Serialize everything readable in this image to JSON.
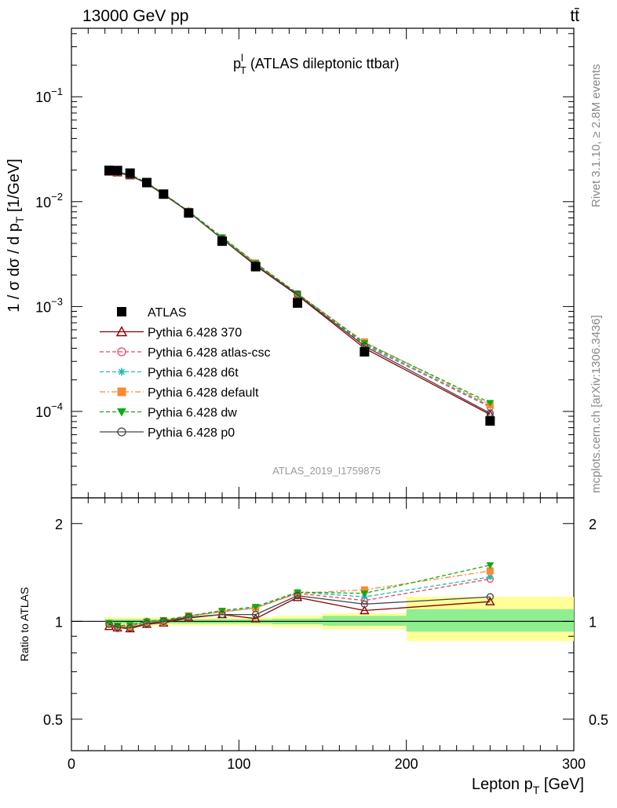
{
  "header": {
    "energy_label": "13000 GeV pp",
    "process_label": "tt̄"
  },
  "side_labels": {
    "rivet": "Rivet 3.1.10, ≥ 2.8M events",
    "mcplots": "mcplots.cern.ch [arXiv:1306.3436]"
  },
  "chart_data": [
    {
      "type": "scatter",
      "title": "p_T^l (ATLAS dileptonic ttbar)",
      "title_main": "p",
      "title_sup": "l",
      "title_sub": "T",
      "title_rest": " (ATLAS dileptonic ttbar)",
      "watermark": "ATLAS_2019_I1759875",
      "ylabel": "1 / σ  dσ / d p_T [1/GeV]",
      "ylabel_main": "1 / σ  dσ / d p",
      "ylabel_sub": "T",
      "ylabel_rest": " [1/GeV]",
      "yscale": "log",
      "ylim": [
        1.5e-05,
        0.45
      ],
      "xlim": [
        0,
        300
      ],
      "ytick_labels": [
        "10⁻⁴",
        "10⁻³",
        "10⁻²",
        "10⁻¹"
      ],
      "ytick_values": [
        0.0001,
        0.001,
        0.01,
        0.1
      ],
      "legend_position": "bottom-left",
      "x": [
        22.5,
        27.5,
        35,
        45,
        55,
        70,
        90,
        110,
        135,
        175,
        250
      ],
      "series": [
        {
          "name": "ATLAS",
          "marker": "square",
          "color": "#000000",
          "values": [
            0.0199,
            0.0198,
            0.0187,
            0.0152,
            0.0118,
            0.0078,
            0.0042,
            0.0024,
            0.00108,
            0.00037,
            8.1e-05
          ]
        },
        {
          "name": "Pythia 6.428 370",
          "marker": "triangle-open",
          "color": "#8b0000",
          "line": "solid",
          "values": [
            0.0192,
            0.0189,
            0.0177,
            0.0149,
            0.0117,
            0.008,
            0.0044,
            0.00245,
            0.00128,
            0.0004,
            9.35e-05
          ]
        },
        {
          "name": "Pythia 6.428 atlas-csc",
          "marker": "circle-open",
          "color": "#ee4466",
          "line": "dashed",
          "values": [
            0.0196,
            0.0189,
            0.0179,
            0.0152,
            0.0118,
            0.0081,
            0.0045,
            0.0026,
            0.00132,
            0.00043,
            0.00011
          ]
        },
        {
          "name": "Pythia 6.428 d6t",
          "marker": "star",
          "color": "#22bbaa",
          "line": "dashed",
          "values": [
            0.0196,
            0.0192,
            0.0181,
            0.0151,
            0.0119,
            0.0081,
            0.0045,
            0.0026,
            0.00133,
            0.00044,
            0.000113
          ]
        },
        {
          "name": "Pythia 6.428 default",
          "marker": "square-filled",
          "color": "#ff8833",
          "line": "dashdot",
          "values": [
            0.0196,
            0.0191,
            0.018,
            0.0151,
            0.0118,
            0.0081,
            0.0045,
            0.0026,
            0.00132,
            0.00046,
            0.000116
          ]
        },
        {
          "name": "Pythia 6.428 dw",
          "marker": "triangle-down",
          "color": "#11aa11",
          "line": "dashed",
          "values": [
            0.0197,
            0.0192,
            0.0182,
            0.0152,
            0.0119,
            0.0081,
            0.0046,
            0.0026,
            0.00133,
            0.00045,
            0.000121
          ]
        },
        {
          "name": "Pythia 6.428 p0",
          "marker": "circle-open",
          "color": "#444444",
          "line": "solid",
          "values": [
            0.0195,
            0.019,
            0.0178,
            0.015,
            0.0118,
            0.008,
            0.0044,
            0.0025,
            0.0013,
            0.00042,
            9.62e-05
          ]
        }
      ]
    },
    {
      "type": "scatter",
      "ylabel": "Ratio to ATLAS",
      "xlabel": "Lepton p_T [GeV]",
      "xlabel_main": "Lepton p",
      "xlabel_sub": "T",
      "xlabel_rest": " [GeV]",
      "yscale": "log",
      "ylim": [
        0.4,
        2.4
      ],
      "xlim": [
        0,
        300
      ],
      "ytick_labels": [
        "0.5",
        "1",
        "2"
      ],
      "ytick_values": [
        0.5,
        1,
        2
      ],
      "xtick_labels": [
        "0",
        "100",
        "200",
        "300"
      ],
      "xtick_values": [
        0,
        100,
        200,
        300
      ],
      "bins": [
        [
          20,
          25
        ],
        [
          25,
          30
        ],
        [
          30,
          40
        ],
        [
          40,
          50
        ],
        [
          50,
          60
        ],
        [
          60,
          80
        ],
        [
          80,
          100
        ],
        [
          100,
          120
        ],
        [
          120,
          150
        ],
        [
          150,
          200
        ],
        [
          200,
          300
        ]
      ],
      "band_stat": [
        [
          0.985,
          1.015
        ],
        [
          0.985,
          1.015
        ],
        [
          0.985,
          1.015
        ],
        [
          0.985,
          1.015
        ],
        [
          0.985,
          1.015
        ],
        [
          0.985,
          1.015
        ],
        [
          0.985,
          1.015
        ],
        [
          0.985,
          1.015
        ],
        [
          0.98,
          1.02
        ],
        [
          0.97,
          1.04
        ],
        [
          0.93,
          1.09
        ]
      ],
      "band_total": [
        [
          0.97,
          1.03
        ],
        [
          0.97,
          1.03
        ],
        [
          0.97,
          1.03
        ],
        [
          0.97,
          1.03
        ],
        [
          0.97,
          1.03
        ],
        [
          0.97,
          1.03
        ],
        [
          0.97,
          1.03
        ],
        [
          0.97,
          1.03
        ],
        [
          0.96,
          1.04
        ],
        [
          0.945,
          1.06
        ],
        [
          0.87,
          1.19
        ]
      ],
      "series": [
        {
          "name": "Pythia 6.428 370",
          "values": [
            0.965,
            0.955,
            0.95,
            0.98,
            0.99,
            1.025,
            1.05,
            1.02,
            1.185,
            1.08,
            1.15
          ]
        },
        {
          "name": "Pythia 6.428 atlas-csc",
          "values": [
            0.985,
            0.95,
            0.96,
            1.0,
            1.0,
            1.04,
            1.07,
            1.1,
            1.22,
            1.16,
            1.35
          ]
        },
        {
          "name": "Pythia 6.428 d6t",
          "values": [
            0.985,
            0.97,
            0.97,
            0.995,
            1.005,
            1.04,
            1.07,
            1.1,
            1.23,
            1.19,
            1.37
          ]
        },
        {
          "name": "Pythia 6.428 default",
          "values": [
            0.985,
            0.965,
            0.965,
            0.99,
            1.0,
            1.04,
            1.07,
            1.1,
            1.22,
            1.25,
            1.43
          ]
        },
        {
          "name": "Pythia 6.428 dw",
          "values": [
            0.99,
            0.97,
            0.975,
            1.0,
            1.01,
            1.04,
            1.08,
            1.11,
            1.23,
            1.22,
            1.49
          ]
        },
        {
          "name": "Pythia 6.428 p0",
          "values": [
            0.98,
            0.96,
            0.955,
            0.985,
            1.0,
            1.03,
            1.05,
            1.05,
            1.2,
            1.13,
            1.19
          ]
        }
      ]
    }
  ]
}
